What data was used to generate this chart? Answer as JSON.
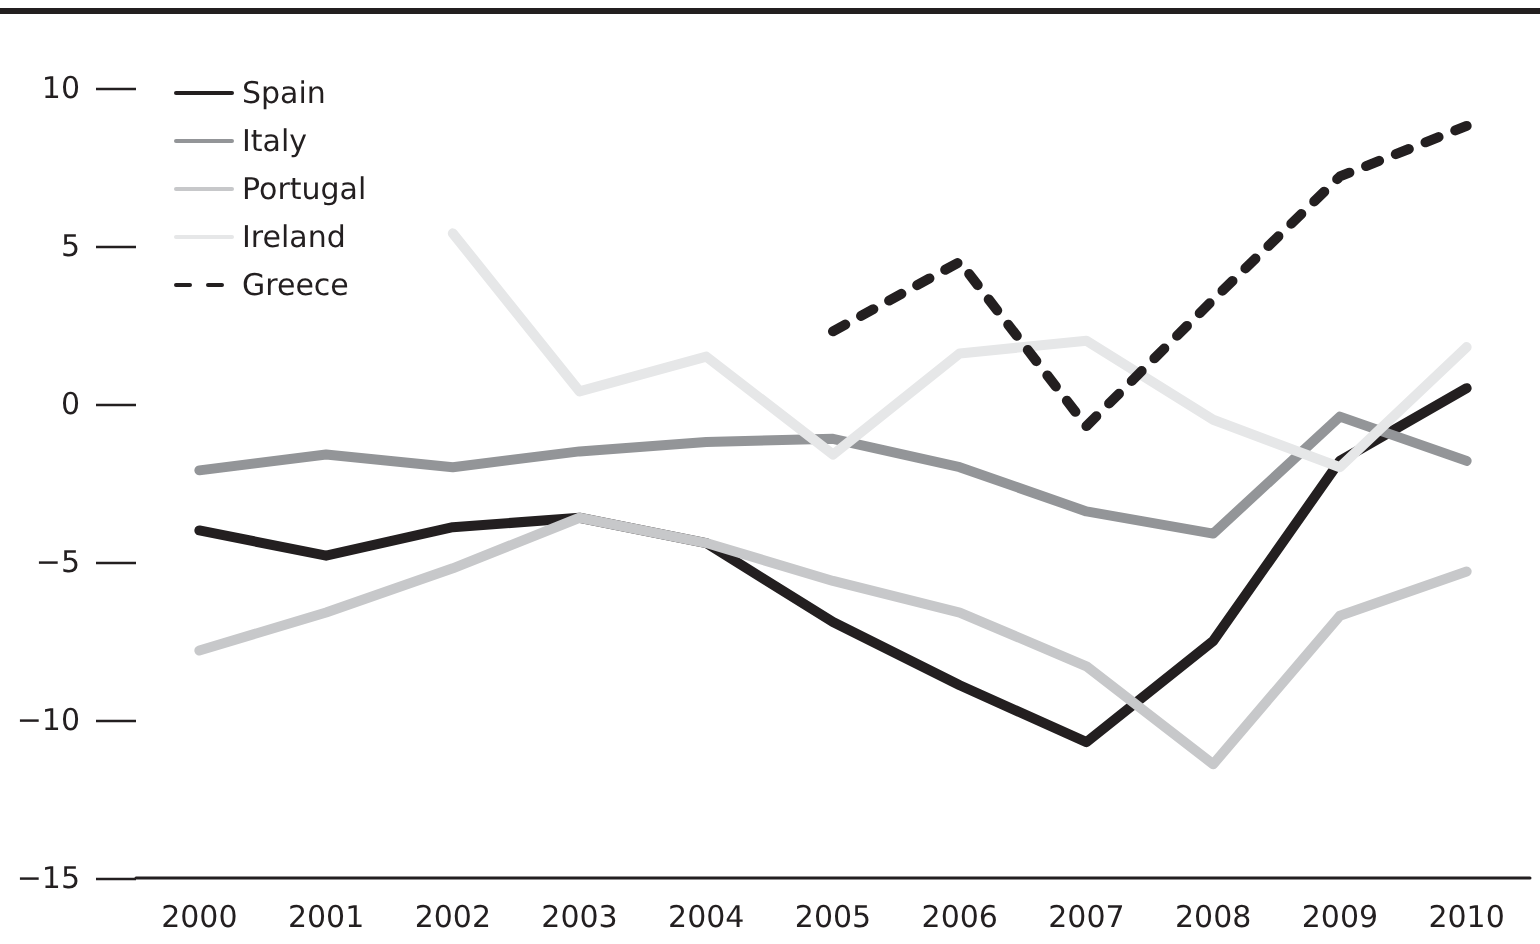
{
  "chart_data": {
    "type": "line",
    "categories": [
      "2000",
      "2001",
      "2002",
      "2003",
      "2004",
      "2005",
      "2006",
      "2007",
      "2008",
      "2009",
      "2010"
    ],
    "series": [
      {
        "name": "Spain",
        "color": "#231f20",
        "line_style": "solid",
        "values": [
          -4.0,
          -4.8,
          -3.9,
          -3.6,
          -4.4,
          -6.9,
          -8.9,
          -10.7,
          -7.5,
          -1.8,
          0.5
        ]
      },
      {
        "name": "Italy",
        "color": "#939598",
        "line_style": "solid",
        "values": [
          -2.1,
          -1.6,
          -2.0,
          -1.5,
          -1.2,
          -1.1,
          -2.0,
          -3.4,
          -4.1,
          -0.4,
          -1.8
        ]
      },
      {
        "name": "Portugal",
        "color": "#c7c8ca",
        "line_style": "solid",
        "values": [
          -7.8,
          -6.6,
          -5.2,
          -3.6,
          -4.4,
          -5.6,
          -6.6,
          -8.3,
          -11.4,
          -6.7,
          -5.3
        ]
      },
      {
        "name": "Ireland",
        "color": "#e6e7e8",
        "line_style": "solid",
        "values": [
          null,
          null,
          5.4,
          0.4,
          1.5,
          -1.6,
          1.6,
          2.0,
          -0.5,
          -2.0,
          1.8
        ]
      },
      {
        "name": "Greece",
        "color": "#231f20",
        "line_style": "dashed",
        "values": [
          null,
          null,
          null,
          null,
          null,
          2.3,
          4.5,
          -0.7,
          3.3,
          7.2,
          8.8
        ]
      }
    ],
    "ylim": [
      -15,
      10
    ],
    "yticks": [
      -15,
      -10,
      -5,
      0,
      5,
      10
    ],
    "grid": false,
    "legend": "top left",
    "marker": "none"
  }
}
